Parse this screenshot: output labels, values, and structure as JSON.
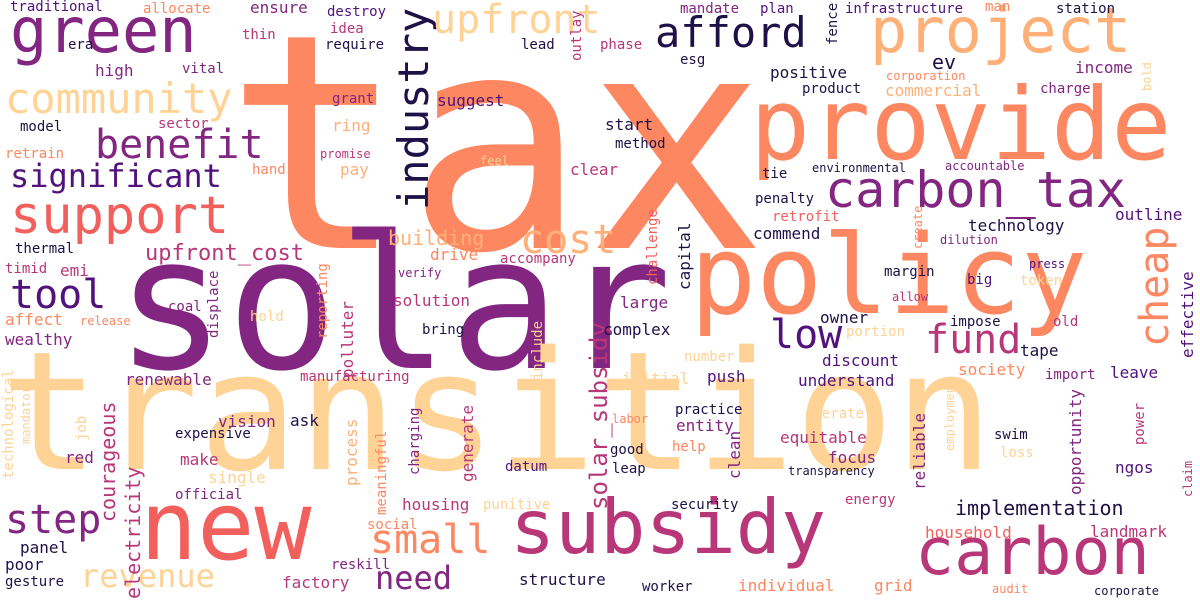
{
  "words": [
    {
      "text": "tax",
      "color": "#fc8761"
    },
    {
      "text": "solar",
      "color": "#822681"
    },
    {
      "text": "transition",
      "color": "#fed395"
    },
    {
      "text": "policy",
      "color": "#fc8761"
    },
    {
      "text": "provide",
      "color": "#fc8761"
    },
    {
      "text": "new",
      "color": "#f1605d"
    },
    {
      "text": "subsidy",
      "color": "#b73779"
    },
    {
      "text": "carbon",
      "color": "#b73779"
    },
    {
      "text": "project",
      "color": "#feb078"
    },
    {
      "text": "green",
      "color": "#822681"
    },
    {
      "text": "carbon_tax",
      "color": "#822681"
    },
    {
      "text": "support",
      "color": "#f1605d"
    },
    {
      "text": "industry",
      "color": "#1d1147"
    },
    {
      "text": "community",
      "color": "#fed395"
    },
    {
      "text": "benefit",
      "color": "#822681"
    },
    {
      "text": "afford",
      "color": "#1d1147"
    },
    {
      "text": "upfront",
      "color": "#fed395"
    },
    {
      "text": "significant",
      "color": "#51127c"
    },
    {
      "text": "cost",
      "color": "#feb078"
    },
    {
      "text": "fund",
      "color": "#b73779"
    },
    {
      "text": "cheap",
      "color": "#fc8761"
    },
    {
      "text": "low",
      "color": "#51127c"
    },
    {
      "text": "tool",
      "color": "#51127c"
    },
    {
      "text": "step",
      "color": "#822681"
    },
    {
      "text": "small",
      "color": "#fc8761"
    },
    {
      "text": "revenue",
      "color": "#fed395"
    },
    {
      "text": "need",
      "color": "#822681"
    },
    {
      "text": "upfront_cost",
      "color": "#b73779"
    },
    {
      "text": "building",
      "color": "#feb078"
    },
    {
      "text": "solar_subsidy",
      "color": "#b73779"
    },
    {
      "text": "implementation",
      "color": "#1d1147"
    },
    {
      "text": "electricity",
      "color": "#b73779"
    },
    {
      "text": "courageous",
      "color": "#b73779"
    },
    {
      "text": "ev",
      "color": "#1d1147"
    },
    {
      "text": "positive",
      "color": "#1d1147"
    },
    {
      "text": "income",
      "color": "#822681"
    },
    {
      "text": "commercial",
      "color": "#feb078"
    },
    {
      "text": "outline",
      "color": "#51127c"
    },
    {
      "text": "technology",
      "color": "#1d1147"
    },
    {
      "text": "commend",
      "color": "#1d1147"
    },
    {
      "text": "effective",
      "color": "#51127c"
    },
    {
      "text": "capital",
      "color": "#1d1147"
    },
    {
      "text": "polluter",
      "color": "#b73779"
    },
    {
      "text": "generate",
      "color": "#b73779"
    },
    {
      "text": "process",
      "color": "#feb078"
    },
    {
      "text": "clean",
      "color": "#822681"
    },
    {
      "text": "reliable",
      "color": "#822681"
    },
    {
      "text": "opportunity",
      "color": "#822681"
    },
    {
      "text": "suggest",
      "color": "#51127c"
    },
    {
      "text": "start",
      "color": "#1d1147"
    },
    {
      "text": "method",
      "color": "#1d1147"
    },
    {
      "text": "clear",
      "color": "#b73779"
    },
    {
      "text": "pay",
      "color": "#feb078"
    },
    {
      "text": "ring",
      "color": "#feb078"
    },
    {
      "text": "grant",
      "color": "#822681"
    },
    {
      "text": "drive",
      "color": "#fc8761"
    },
    {
      "text": "solution",
      "color": "#b73779"
    },
    {
      "text": "large",
      "color": "#822681"
    },
    {
      "text": "complex",
      "color": "#1d1147"
    },
    {
      "text": "discount",
      "color": "#51127c"
    },
    {
      "text": "understand",
      "color": "#51127c"
    },
    {
      "text": "society",
      "color": "#fc8761"
    },
    {
      "text": "leave",
      "color": "#51127c"
    },
    {
      "text": "owner",
      "color": "#1d1147"
    },
    {
      "text": "impose",
      "color": "#1d1147"
    },
    {
      "text": "tape",
      "color": "#1d1147"
    },
    {
      "text": "push",
      "color": "#51127c"
    },
    {
      "text": "initial",
      "color": "#fed395"
    },
    {
      "text": "renewable",
      "color": "#822681"
    },
    {
      "text": "wealthy",
      "color": "#822681"
    },
    {
      "text": "affect",
      "color": "#fc8761"
    },
    {
      "text": "thermal",
      "color": "#1d1147"
    },
    {
      "text": "emi",
      "color": "#b73779"
    },
    {
      "text": "timid",
      "color": "#b73779"
    },
    {
      "text": "model",
      "color": "#1d1147"
    },
    {
      "text": "high",
      "color": "#822681"
    },
    {
      "text": "vital",
      "color": "#822681"
    },
    {
      "text": "traditional",
      "color": "#51127c"
    },
    {
      "text": "allocate",
      "color": "#fc8761"
    },
    {
      "text": "ensure",
      "color": "#822681"
    },
    {
      "text": "thin",
      "color": "#b73779"
    },
    {
      "text": "destroy",
      "color": "#51127c"
    },
    {
      "text": "idea",
      "color": "#b73779"
    },
    {
      "text": "require",
      "color": "#1d1147"
    },
    {
      "text": "lead",
      "color": "#1d1147"
    },
    {
      "text": "outlay",
      "color": "#b73779"
    },
    {
      "text": "phase",
      "color": "#b73779"
    },
    {
      "text": "mandate",
      "color": "#822681"
    },
    {
      "text": "plan",
      "color": "#51127c"
    },
    {
      "text": "fence",
      "color": "#1d1147"
    },
    {
      "text": "infrastructure",
      "color": "#51127c"
    },
    {
      "text": "man",
      "color": "#fc8761"
    },
    {
      "text": "station",
      "color": "#1d1147"
    },
    {
      "text": "esg",
      "color": "#1d1147"
    },
    {
      "text": "era",
      "color": "#1d1147"
    },
    {
      "text": "product",
      "color": "#1d1147"
    },
    {
      "text": "corporation",
      "color": "#fc8761"
    },
    {
      "text": "charge",
      "color": "#822681"
    },
    {
      "text": "bold",
      "color": "#fed395"
    },
    {
      "text": "sector",
      "color": "#b73779"
    },
    {
      "text": "retrain",
      "color": "#fc8761"
    },
    {
      "text": "promise",
      "color": "#b73779"
    },
    {
      "text": "feel",
      "color": "#fed395"
    },
    {
      "text": "hand",
      "color": "#fc8761"
    },
    {
      "text": "environmental",
      "color": "#1d1147"
    },
    {
      "text": "accountable",
      "color": "#822681"
    },
    {
      "text": "tie",
      "color": "#1d1147"
    },
    {
      "text": "penalty",
      "color": "#1d1147"
    },
    {
      "text": "retrofit",
      "color": "#f1605d"
    },
    {
      "text": "create",
      "color": "#fc8761"
    },
    {
      "text": "dilution",
      "color": "#822681"
    },
    {
      "text": "challenge",
      "color": "#f1605d"
    },
    {
      "text": "accompany",
      "color": "#b73779"
    },
    {
      "text": "verify",
      "color": "#822681"
    },
    {
      "text": "coal",
      "color": "#822681"
    },
    {
      "text": "displace",
      "color": "#822681"
    },
    {
      "text": "release",
      "color": "#fc8761"
    },
    {
      "text": "hold",
      "color": "#fed395"
    },
    {
      "text": "reporting",
      "color": "#fc8761"
    },
    {
      "text": "bring",
      "color": "#1d1147"
    },
    {
      "text": "margin",
      "color": "#1d1147"
    },
    {
      "text": "big",
      "color": "#51127c"
    },
    {
      "text": "token",
      "color": "#fed395"
    },
    {
      "text": "press",
      "color": "#51127c"
    },
    {
      "text": "allow",
      "color": "#b73779"
    },
    {
      "text": "portion",
      "color": "#fed395"
    },
    {
      "text": "old",
      "color": "#b73779"
    },
    {
      "text": "import",
      "color": "#822681"
    },
    {
      "text": "number",
      "color": "#fed395"
    },
    {
      "text": "manufacturing",
      "color": "#b73779"
    },
    {
      "text": "include",
      "color": "#fed395"
    },
    {
      "text": "technological",
      "color": "#fed395"
    },
    {
      "text": "mandatory",
      "color": "#fed395"
    },
    {
      "text": "job",
      "color": "#fed395"
    },
    {
      "text": "vision",
      "color": "#822681"
    },
    {
      "text": "ask",
      "color": "#1d1147"
    },
    {
      "text": "expensive",
      "color": "#1d1147"
    },
    {
      "text": "labor",
      "color": "#fc8761"
    },
    {
      "text": "practice",
      "color": "#1d1147"
    },
    {
      "text": "operate",
      "color": "#fed395"
    },
    {
      "text": "employment",
      "color": "#fed395"
    },
    {
      "text": "power",
      "color": "#b73779"
    },
    {
      "text": "claim",
      "color": "#b73779"
    },
    {
      "text": "entity",
      "color": "#822681"
    },
    {
      "text": "equitable",
      "color": "#b73779"
    },
    {
      "text": "swim",
      "color": "#1d1147"
    },
    {
      "text": "loss",
      "color": "#fed395"
    },
    {
      "text": "help",
      "color": "#fc8761"
    },
    {
      "text": "focus",
      "color": "#822681"
    },
    {
      "text": "meaningful",
      "color": "#fc8761"
    },
    {
      "text": "charging",
      "color": "#822681"
    },
    {
      "text": "red",
      "color": "#822681"
    },
    {
      "text": "make",
      "color": "#b73779"
    },
    {
      "text": "single",
      "color": "#fed395"
    },
    {
      "text": "official",
      "color": "#822681"
    },
    {
      "text": "datum",
      "color": "#51127c"
    },
    {
      "text": "good",
      "color": "#1d1147"
    },
    {
      "text": "leap",
      "color": "#1d1147"
    },
    {
      "text": "transparency",
      "color": "#1d1147"
    },
    {
      "text": "ngos",
      "color": "#51127c"
    },
    {
      "text": "energy",
      "color": "#b73779"
    },
    {
      "text": "housing",
      "color": "#b73779"
    },
    {
      "text": "punitive",
      "color": "#fed395"
    },
    {
      "text": "security",
      "color": "#1d1147"
    },
    {
      "text": "household",
      "color": "#f1605d"
    },
    {
      "text": "landmark",
      "color": "#b73779"
    },
    {
      "text": "social",
      "color": "#fc8761"
    },
    {
      "text": "reskill",
      "color": "#822681"
    },
    {
      "text": "panel",
      "color": "#1d1147"
    },
    {
      "text": "poor",
      "color": "#1d1147"
    },
    {
      "text": "gesture",
      "color": "#1d1147"
    },
    {
      "text": "factory",
      "color": "#b73779"
    },
    {
      "text": "structure",
      "color": "#1d1147"
    },
    {
      "text": "worker",
      "color": "#1d1147"
    },
    {
      "text": "individual",
      "color": "#fc8761"
    },
    {
      "text": "grid",
      "color": "#fc8761"
    },
    {
      "text": "audit",
      "color": "#fc8761"
    },
    {
      "text": "corporate",
      "color": "#1d1147"
    }
  ]
}
